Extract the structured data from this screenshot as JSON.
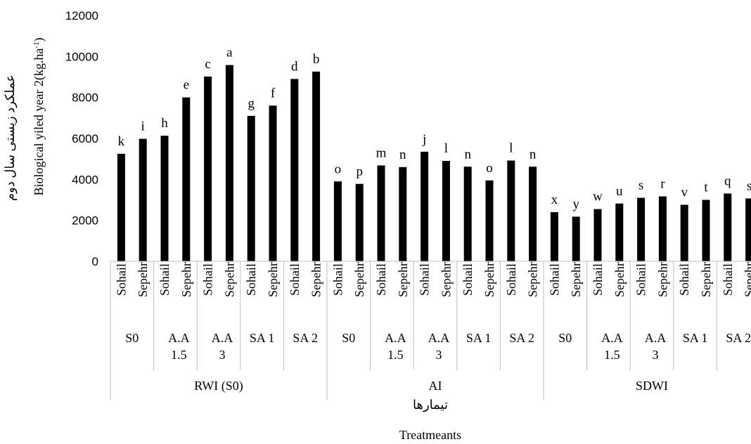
{
  "chart_data": {
    "type": "bar",
    "ylim": [
      0,
      12000
    ],
    "yticks": [
      0,
      2000,
      4000,
      6000,
      8000,
      10000,
      12000
    ],
    "ylabel_fa": "عملکرد زیستی سال دوم",
    "ylabel_en": "Biological yiled year 2(kg.ha",
    "ylabel_en_sup": "-1",
    "ylabel_en_end": ")",
    "xlabel_fa": "تیمارها",
    "xlabel_en": "Treatmeants",
    "grid": false,
    "legend": "none",
    "bar_color": "#000000",
    "irrigation_groups": [
      {
        "label": "RWI (S0)",
        "treatments": [
          {
            "label": [
              "S0"
            ],
            "bars": [
              {
                "cultivar": "Sohail",
                "value": 5250,
                "sig": "k"
              },
              {
                "cultivar": "Sepehr",
                "value": 5980,
                "sig": "i"
              }
            ]
          },
          {
            "label": [
              "A.A",
              "1.5"
            ],
            "bars": [
              {
                "cultivar": "Sohail",
                "value": 6130,
                "sig": "h"
              },
              {
                "cultivar": "Sepehr",
                "value": 8000,
                "sig": "e"
              }
            ]
          },
          {
            "label": [
              "A.A",
              "3"
            ],
            "bars": [
              {
                "cultivar": "Sohail",
                "value": 9020,
                "sig": "c"
              },
              {
                "cultivar": "Sepehr",
                "value": 9580,
                "sig": "a"
              }
            ]
          },
          {
            "label": [
              "SA 1"
            ],
            "bars": [
              {
                "cultivar": "Sohail",
                "value": 7100,
                "sig": "g"
              },
              {
                "cultivar": "Sepehr",
                "value": 7600,
                "sig": "f"
              }
            ]
          },
          {
            "label": [
              "SA 2"
            ],
            "bars": [
              {
                "cultivar": "Sohail",
                "value": 8900,
                "sig": "d"
              },
              {
                "cultivar": "Sepehr",
                "value": 9260,
                "sig": "b"
              }
            ]
          }
        ]
      },
      {
        "label": "AI",
        "treatments": [
          {
            "label": [
              "S0"
            ],
            "bars": [
              {
                "cultivar": "Sohail",
                "value": 3900,
                "sig": "o"
              },
              {
                "cultivar": "Sepehr",
                "value": 3780,
                "sig": "p"
              }
            ]
          },
          {
            "label": [
              "A.A",
              "1.5"
            ],
            "bars": [
              {
                "cultivar": "Sohail",
                "value": 4680,
                "sig": "m"
              },
              {
                "cultivar": "Sepehr",
                "value": 4600,
                "sig": "n"
              }
            ]
          },
          {
            "label": [
              "A.A",
              "3"
            ],
            "bars": [
              {
                "cultivar": "Sohail",
                "value": 5350,
                "sig": "j"
              },
              {
                "cultivar": "Sepehr",
                "value": 4900,
                "sig": "l"
              }
            ]
          },
          {
            "label": [
              "SA 1"
            ],
            "bars": [
              {
                "cultivar": "Sohail",
                "value": 4620,
                "sig": "n"
              },
              {
                "cultivar": "Sepehr",
                "value": 3950,
                "sig": "o"
              }
            ]
          },
          {
            "label": [
              "SA 2"
            ],
            "bars": [
              {
                "cultivar": "Sohail",
                "value": 4920,
                "sig": "l"
              },
              {
                "cultivar": "Sepehr",
                "value": 4620,
                "sig": "n"
              }
            ]
          }
        ]
      },
      {
        "label": "SDWI",
        "treatments": [
          {
            "label": [
              "S0"
            ],
            "bars": [
              {
                "cultivar": "Sohail",
                "value": 2400,
                "sig": "x"
              },
              {
                "cultivar": "Sepehr",
                "value": 2180,
                "sig": "y"
              }
            ]
          },
          {
            "label": [
              "A.A",
              "1.5"
            ],
            "bars": [
              {
                "cultivar": "Sohail",
                "value": 2550,
                "sig": "w"
              },
              {
                "cultivar": "Sepehr",
                "value": 2820,
                "sig": "u"
              }
            ]
          },
          {
            "label": [
              "A.A",
              "3"
            ],
            "bars": [
              {
                "cultivar": "Sohail",
                "value": 3100,
                "sig": "s"
              },
              {
                "cultivar": "Sepehr",
                "value": 3170,
                "sig": "r"
              }
            ]
          },
          {
            "label": [
              "SA 1"
            ],
            "bars": [
              {
                "cultivar": "Sohail",
                "value": 2760,
                "sig": "v"
              },
              {
                "cultivar": "Sepehr",
                "value": 3000,
                "sig": "t"
              }
            ]
          },
          {
            "label": [
              "SA 2"
            ],
            "bars": [
              {
                "cultivar": "Sohail",
                "value": 3310,
                "sig": "q"
              },
              {
                "cultivar": "Sepehr",
                "value": 3070,
                "sig": "s"
              }
            ]
          }
        ]
      }
    ]
  }
}
